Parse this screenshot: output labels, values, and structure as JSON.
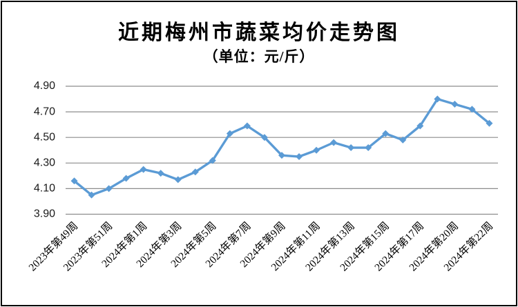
{
  "chart_data": {
    "type": "line",
    "title": "近期梅州市蔬菜均价走势图",
    "subtitle": "（单位：元/斤）",
    "unit": "元/斤",
    "ylim": [
      3.9,
      4.9
    ],
    "y_ticks": [
      "4.90",
      "4.70",
      "4.50",
      "4.30",
      "4.10",
      "3.90"
    ],
    "x_tick_labels": [
      "2023年第49周",
      "2023年第51周",
      "2024年第1周",
      "2024年第3周",
      "2024年第5周",
      "2024年第7周",
      "2024年第9周",
      "2024年第11周",
      "2024年第13周",
      "2024年第15周",
      "2024年第17周",
      "2024年第20周",
      "2024年第22周"
    ],
    "x_tick_every": 2,
    "values": [
      4.16,
      4.05,
      4.1,
      4.18,
      4.25,
      4.22,
      4.17,
      4.23,
      4.32,
      4.53,
      4.59,
      4.5,
      4.36,
      4.35,
      4.4,
      4.46,
      4.42,
      4.42,
      4.53,
      4.48,
      4.59,
      4.8,
      4.76,
      4.72,
      4.61
    ],
    "marker": "diamond",
    "grid": true,
    "legend": "none",
    "line_color": "#5B9BD5",
    "gridline_color": "#8C8C8C",
    "text_color": "#1a1a1a"
  }
}
